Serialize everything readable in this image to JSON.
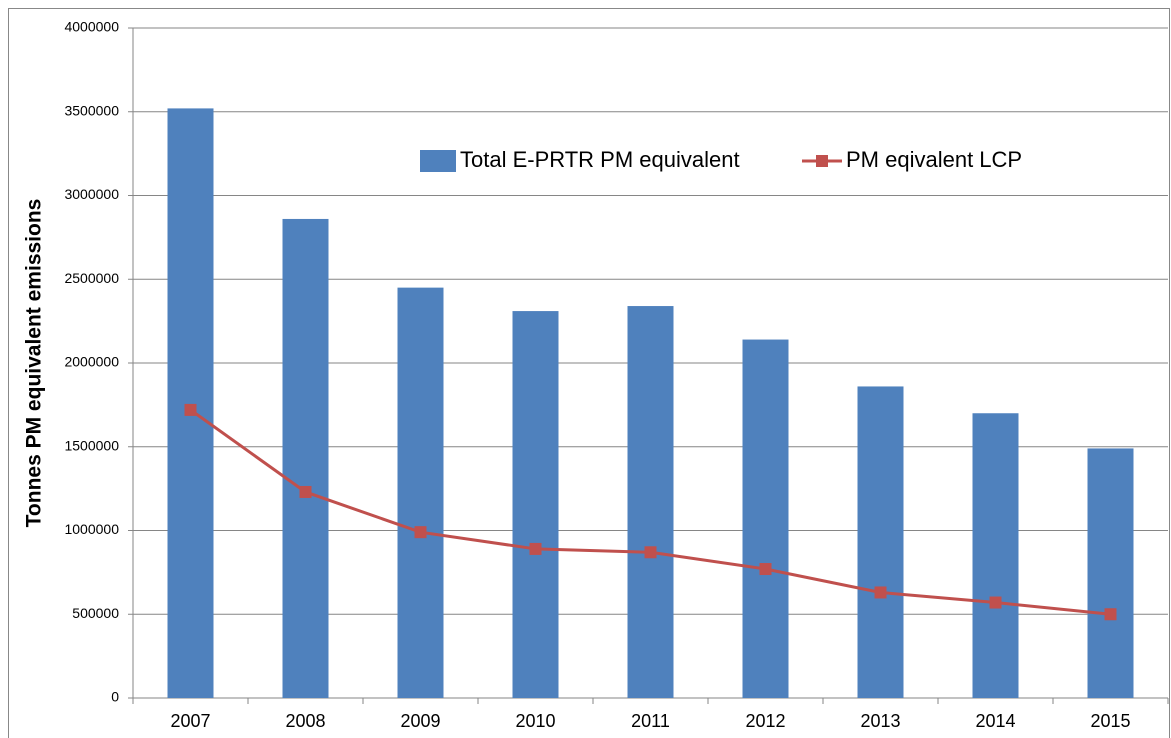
{
  "chart_data": {
    "type": "bar",
    "y_label": "Tonnes PM equivalent emissions",
    "categories": [
      "2007",
      "2008",
      "2009",
      "2010",
      "2011",
      "2012",
      "2013",
      "2014",
      "2015"
    ],
    "series": [
      {
        "name": "Total E-PRTR PM equivalent",
        "type": "bar",
        "color": "#4f81bd",
        "values": [
          3520000,
          2860000,
          2450000,
          2310000,
          2340000,
          2140000,
          1860000,
          1700000,
          1490000
        ]
      },
      {
        "name": "PM eqivalent LCP",
        "type": "line",
        "color": "#c0504d",
        "values": [
          1720000,
          1230000,
          990000,
          890000,
          870000,
          770000,
          630000,
          570000,
          500000
        ]
      }
    ],
    "ylim": [
      0,
      4000000
    ],
    "yticks": [
      0,
      500000,
      1000000,
      1500000,
      2000000,
      2500000,
      3000000,
      3500000,
      4000000
    ],
    "grid": true
  }
}
